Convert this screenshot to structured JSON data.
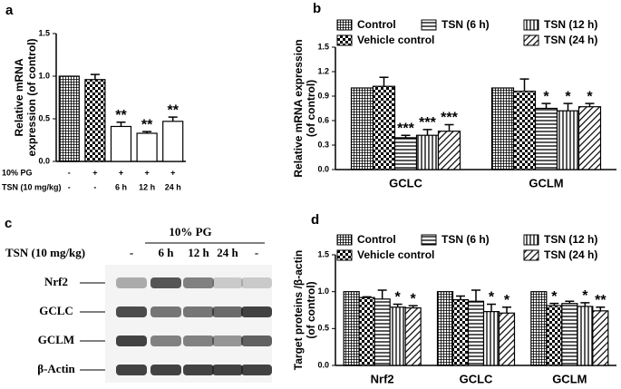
{
  "chart_data": [
    {
      "type": "bar",
      "panel": "a",
      "ylabel": [
        "Relative mRNA",
        "expression (of control)"
      ],
      "categories": [
        null,
        null,
        null,
        null,
        null
      ],
      "values": [
        1.0,
        0.96,
        0.41,
        0.33,
        0.47
      ],
      "errors": [
        0,
        0.06,
        0.05,
        0.02,
        0.05
      ],
      "annotations": [
        null,
        null,
        "**",
        "**",
        "**"
      ],
      "ylim": [
        0,
        1.5
      ],
      "yticks": [
        {
          "value": 0,
          "label": "0.0"
        },
        0.5,
        {
          "value": 1,
          "label": "1.0"
        },
        1.5
      ],
      "x_table": [
        {
          "label": "10% PG",
          "cells": [
            "-",
            "+",
            "+",
            "+",
            "+"
          ]
        },
        {
          "label": "TSN (10 mg/kg)",
          "cells": [
            "-",
            "-",
            "6 h",
            "12 h",
            "24 h"
          ]
        }
      ]
    },
    {
      "type": "grouped-bar",
      "panel": "b",
      "ylabel": [
        "Relative mRNA expression",
        "(of control)"
      ],
      "categories": [
        "GCLC",
        "GCLM"
      ],
      "series": [
        {
          "name": "Control",
          "values": [
            1.0,
            1.0
          ],
          "errors": [
            0,
            0
          ],
          "annotations": [
            null,
            null
          ]
        },
        {
          "name": "Vehicle control",
          "values": [
            1.02,
            0.96
          ],
          "errors": [
            0.11,
            0.15
          ],
          "annotations": [
            null,
            null
          ]
        },
        {
          "name": "TSN (6 h)",
          "values": [
            0.39,
            0.75
          ],
          "errors": [
            0.03,
            0.06
          ],
          "annotations": [
            "***",
            "*"
          ]
        },
        {
          "name": "TSN (12 h)",
          "values": [
            0.42,
            0.72
          ],
          "errors": [
            0.07,
            0.09
          ],
          "annotations": [
            "***",
            "*"
          ]
        },
        {
          "name": "TSN (24 h)",
          "values": [
            0.47,
            0.77
          ],
          "errors": [
            0.08,
            0.04
          ],
          "annotations": [
            "***",
            "*"
          ]
        }
      ],
      "ylim": [
        0,
        1.5
      ],
      "yticks": [
        {
          "value": 0,
          "label": "0.0"
        },
        0.3,
        0.6,
        0.9,
        1.2,
        1.5
      ]
    },
    {
      "type": "grouped-bar",
      "panel": "d",
      "ylabel": [
        "Target proteins /β-actin",
        "(of control)"
      ],
      "categories": [
        "Nrf2",
        "GCLC",
        "GCLM"
      ],
      "series": [
        {
          "name": "Control",
          "values": [
            1.0,
            1.0,
            1.0
          ],
          "errors": [
            0,
            0,
            0
          ],
          "annotations": [
            null,
            null,
            null
          ]
        },
        {
          "name": "Vehicle control",
          "values": [
            0.92,
            0.89,
            0.81
          ],
          "errors": [
            0.01,
            0.05,
            0.03
          ],
          "annotations": [
            null,
            null,
            "*"
          ]
        },
        {
          "name": "TSN (6 h)",
          "values": [
            0.9,
            0.87,
            0.84
          ],
          "errors": [
            0.12,
            0.15,
            0.03
          ],
          "annotations": [
            null,
            null,
            null
          ]
        },
        {
          "name": "TSN (12 h)",
          "values": [
            0.79,
            0.73,
            0.8
          ],
          "errors": [
            0.04,
            0.1,
            0.05
          ],
          "annotations": [
            "*",
            "*",
            "*"
          ]
        },
        {
          "name": "TSN (24 h)",
          "values": [
            0.78,
            0.71,
            0.74
          ],
          "errors": [
            0.03,
            0.08,
            0.05
          ],
          "annotations": [
            "*",
            "*",
            "**"
          ]
        }
      ],
      "ylim": [
        0,
        1.5
      ],
      "yticks": [
        {
          "value": 0,
          "label": "0.0"
        },
        0.5,
        {
          "value": 1,
          "label": "1.0"
        },
        1.5
      ]
    }
  ],
  "blot": {
    "panel": "c",
    "group_label": "10% PG",
    "row_label": "TSN (10 mg/kg)",
    "lanes": [
      "-",
      "6 h",
      "12 h",
      "24 h",
      "-"
    ],
    "bands": [
      "Nrf2",
      "GCLC",
      "GCLM",
      "β-Actin"
    ]
  }
}
